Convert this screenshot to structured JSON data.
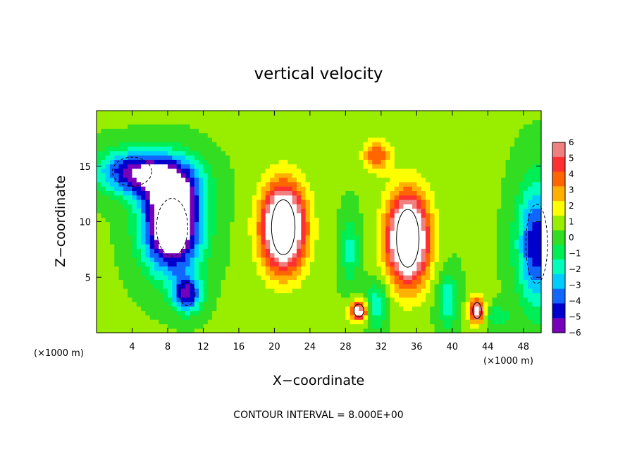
{
  "chart_data": {
    "type": "heatmap",
    "title": "vertical velocity",
    "xlabel": "X−coordinate",
    "ylabel": "Z−coordinate",
    "x_unit": "(×1000 m)",
    "y_unit": "(×1000 m)",
    "xlim": [
      0,
      50
    ],
    "ylim": [
      0,
      20
    ],
    "x_ticks": [
      4,
      8,
      12,
      16,
      20,
      24,
      28,
      32,
      36,
      40,
      44,
      48
    ],
    "y_ticks": [
      5,
      10,
      15
    ],
    "colorbar": {
      "min": -6,
      "max": 6,
      "labels": [
        "6",
        "5",
        "4",
        "3",
        "2",
        "1",
        "0",
        "−1",
        "−2",
        "−3",
        "−4",
        "−5",
        "−6"
      ],
      "colors": [
        "#f08080",
        "#ff3030",
        "#ff6600",
        "#ffb000",
        "#ffff00",
        "#99ee00",
        "#33dd22",
        "#00ee55",
        "#00ffbb",
        "#00ccff",
        "#1166ff",
        "#0000cc",
        "#7700bb"
      ]
    },
    "contour_interval": "CONTOUR INTERVAL = 8.000E+00",
    "features": [
      {
        "kind": "downdraft",
        "x": 8.5,
        "z": 9.5,
        "sx": 3.2,
        "sz": 4.0,
        "amp": -10
      },
      {
        "kind": "downdraft",
        "x": 4.0,
        "z": 14.5,
        "sx": 4.0,
        "sz": 2.0,
        "amp": -6
      },
      {
        "kind": "downdraft",
        "x": 8.5,
        "z": 13.5,
        "sx": 3.5,
        "sz": 2.5,
        "amp": -5
      },
      {
        "kind": "downdraft",
        "x": 10.2,
        "z": 3.5,
        "sx": 1.6,
        "sz": 1.6,
        "amp": -6
      },
      {
        "kind": "downdraft",
        "x": 49.5,
        "z": 8.0,
        "sx": 2.2,
        "sz": 5.5,
        "amp": -6
      },
      {
        "kind": "updraft",
        "x": 21.0,
        "z": 9.5,
        "sx": 2.4,
        "sz": 3.8,
        "amp": 11
      },
      {
        "kind": "updraft",
        "x": 35.0,
        "z": 8.5,
        "sx": 2.3,
        "sz": 4.0,
        "amp": 11
      },
      {
        "kind": "updraft",
        "x": 31.5,
        "z": 16.0,
        "sx": 1.5,
        "sz": 1.4,
        "amp": 4
      },
      {
        "kind": "updraft",
        "x": 29.5,
        "z": 2.0,
        "sx": 1.0,
        "sz": 0.9,
        "amp": 7
      },
      {
        "kind": "updraft",
        "x": 42.8,
        "z": 2.0,
        "sx": 0.9,
        "sz": 1.1,
        "amp": 7
      },
      {
        "kind": "downdraft",
        "x": 28.5,
        "z": 7.5,
        "sx": 1.0,
        "sz": 3.0,
        "amp": -2.5
      },
      {
        "kind": "downdraft",
        "x": 31.5,
        "z": 2.5,
        "sx": 1.2,
        "sz": 2.0,
        "amp": -3
      },
      {
        "kind": "downdraft",
        "x": 39.5,
        "z": 3.0,
        "sx": 1.2,
        "sz": 2.5,
        "amp": -3
      },
      {
        "kind": "downdraft",
        "x": 45.0,
        "z": 1.5,
        "sx": 1.5,
        "sz": 1.0,
        "amp": -2
      }
    ]
  }
}
